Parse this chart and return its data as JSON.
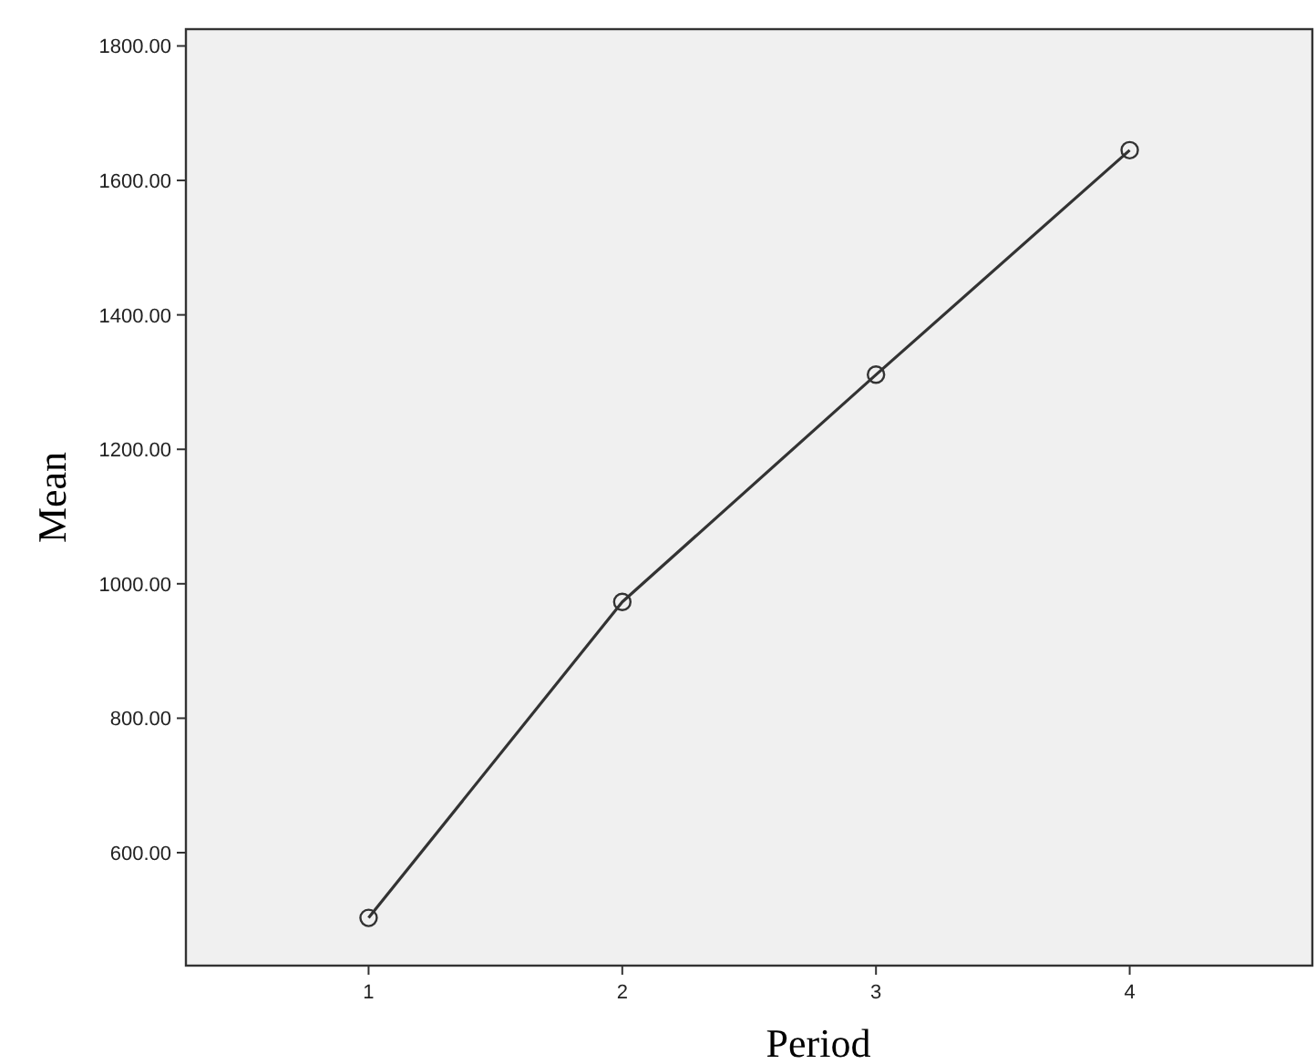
{
  "chart_data": {
    "type": "line",
    "xlabel": "Period",
    "ylabel": "Mean",
    "x": [
      1,
      2,
      3,
      4
    ],
    "series": [
      {
        "color": "#333333",
        "values": [
          503,
          973,
          1311,
          1645
        ]
      }
    ],
    "xlim": [
      0.28,
      4.72
    ],
    "xticks": [
      1,
      2,
      3,
      4
    ],
    "ylim": [
      432,
      1825
    ],
    "yticks": [
      {
        "value": 600,
        "label": "600.00"
      },
      {
        "value": 800,
        "label": "800.00"
      },
      {
        "value": 1000,
        "label": "1000.00"
      },
      {
        "value": 1200,
        "label": "1200.00"
      },
      {
        "value": 1400,
        "label": "1400.00"
      },
      {
        "value": 1600,
        "label": "1600.00"
      },
      {
        "value": 1800,
        "label": "1800.00"
      }
    ],
    "marker": "circle",
    "grid": false
  }
}
